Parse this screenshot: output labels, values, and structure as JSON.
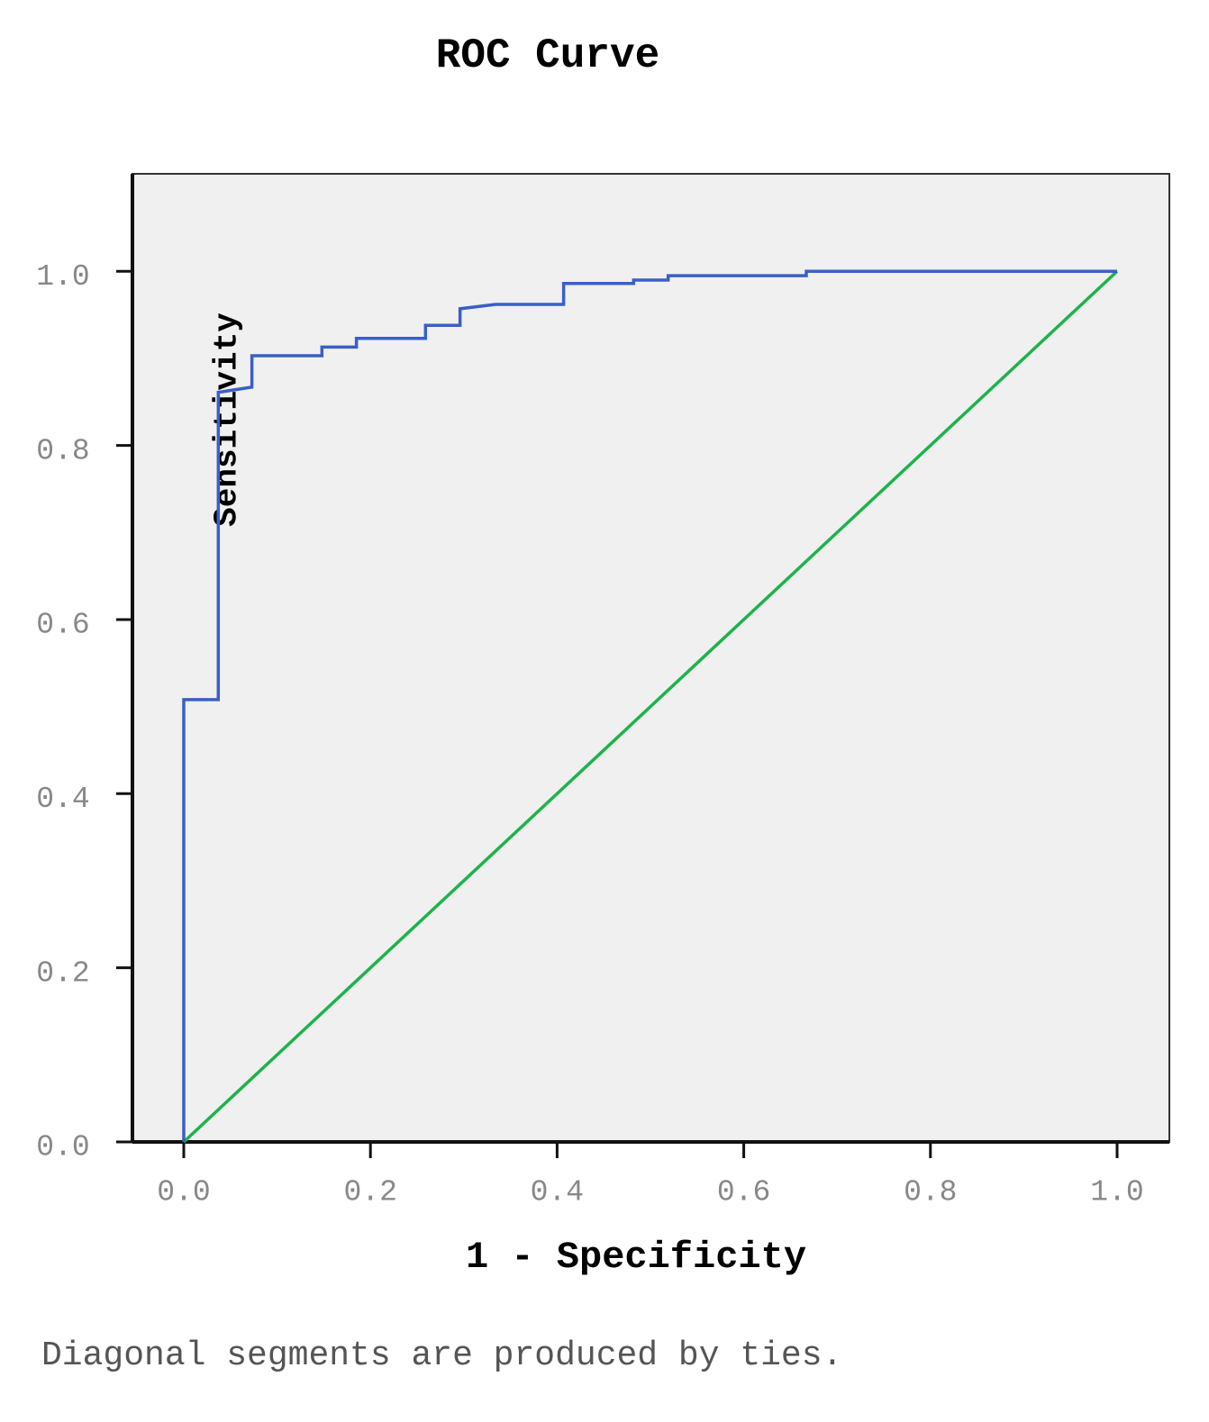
{
  "chart_data": {
    "type": "line",
    "title": "ROC Curve",
    "xlabel": "1 - Specificity",
    "ylabel": "Sensitivity",
    "note": "Diagonal segments are produced by ties.",
    "xlim": [
      -0.055,
      1.056
    ],
    "ylim": [
      0,
      1.112
    ],
    "xticks": [
      {
        "value": 0,
        "label": "0.0"
      },
      0.2,
      0.4,
      0.6,
      0.8,
      {
        "value": 1,
        "label": "1.0"
      }
    ],
    "yticks": [
      {
        "value": 0,
        "label": "0.0"
      },
      0.2,
      0.4,
      0.6,
      0.8,
      {
        "value": 1,
        "label": "1.0"
      }
    ],
    "grid": false,
    "series": [
      {
        "color": "#3a5fc8",
        "x": [
          0,
          0,
          0.037,
          0.037,
          0.073,
          0.073,
          0.148,
          0.148,
          0.185,
          0.185,
          0.259,
          0.259,
          0.296,
          0.296,
          0.334,
          0.407,
          0.407,
          0.482,
          0.482,
          0.519,
          0.519,
          0.667,
          0.667,
          1
        ],
        "values": [
          0,
          0.508,
          0.508,
          0.861,
          0.867,
          0.903,
          0.903,
          0.913,
          0.913,
          0.923,
          0.923,
          0.938,
          0.938,
          0.957,
          0.962,
          0.962,
          0.986,
          0.986,
          0.99,
          0.99,
          0.995,
          0.995,
          1.0,
          1.0
        ]
      },
      {
        "color": "#1db34a",
        "x": [
          0,
          1
        ],
        "values": [
          0,
          1
        ]
      }
    ]
  }
}
